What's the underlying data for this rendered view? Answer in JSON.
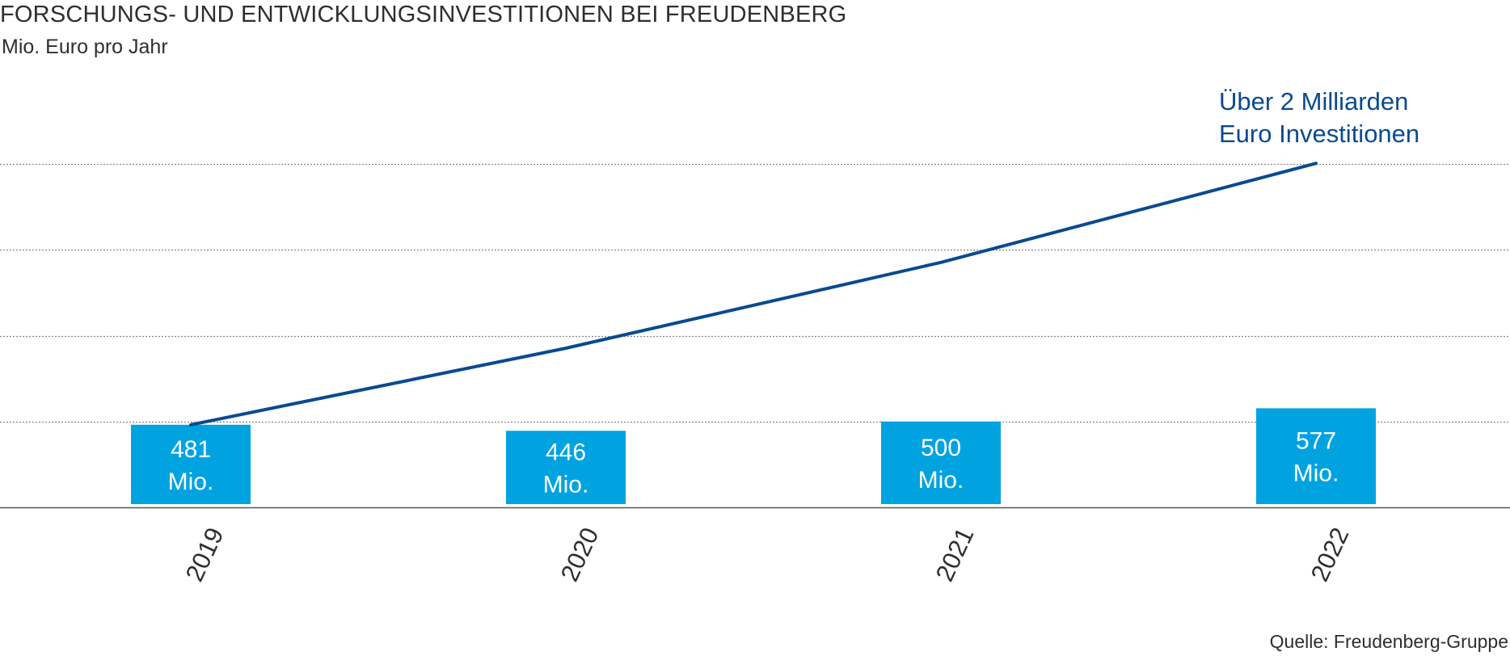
{
  "header": {
    "title": "FORSCHUNGS- UND ENTWICKLUNGSINVESTITIONEN BEI FREUDENBERG",
    "subtitle": "Mio. Euro pro Jahr"
  },
  "footer": {
    "source": "Quelle: Freudenberg-Gruppe"
  },
  "annotation": {
    "line1": "Über 2 Milliarden",
    "line2": "Euro Investitionen"
  },
  "colors": {
    "bar": "#00a3e0",
    "line": "#0a4a8f",
    "bar_text": "#ffffff",
    "grid": "#888888",
    "axis": "#555555"
  },
  "chart_data": {
    "type": "bar",
    "title": "FORSCHUNGS- UND ENTWICKLUNGSINVESTITIONEN BEI FREUDENBERG",
    "subtitle": "Mio. Euro pro Jahr",
    "categories": [
      "2019",
      "2020",
      "2021",
      "2022"
    ],
    "values": [
      481,
      446,
      500,
      577
    ],
    "bar_labels": [
      [
        "481",
        "Mio."
      ],
      [
        "446",
        "Mio."
      ],
      [
        "500",
        "Mio."
      ],
      [
        "577",
        "Mio."
      ]
    ],
    "cumulative_line": {
      "values": [
        481,
        927,
        1427,
        2004
      ],
      "annotation": "Über 2 Milliarden Euro Investitionen"
    },
    "ylim": [
      0,
      2000
    ],
    "grid": true,
    "gridline_values": [
      500,
      1000,
      1500,
      2000
    ],
    "source": "Quelle: Freudenberg-Gruppe"
  }
}
